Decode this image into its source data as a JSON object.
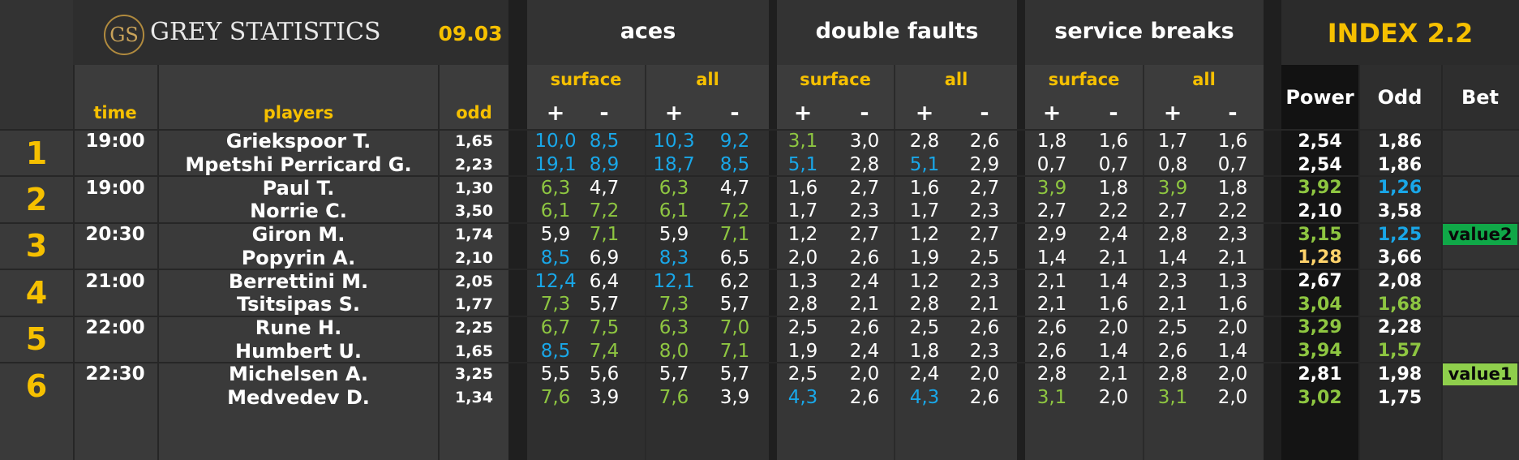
{
  "header": {
    "logo_mark": "GS",
    "logo_text": "GREY STATISTICS",
    "date": "09.03",
    "index_title": "INDEX 2.2",
    "groups": [
      "aces",
      "double faults",
      "service breaks"
    ],
    "subgroups": [
      "surface",
      "all"
    ],
    "plus": "+",
    "minus": "-",
    "col_time": "time",
    "col_players": "players",
    "col_odd": "odd",
    "col_power": "Power",
    "col_odd2": "Odd",
    "col_bet": "Bet"
  },
  "colors": {
    "white": "#ffffff",
    "green": "#8ec641",
    "blue": "#19a7e8",
    "gold": "#f6c000",
    "orange": "#ffd36b",
    "value_bg_dark": "#10a848",
    "value_bg_light": "#8fcf4c"
  },
  "matches": [
    {
      "no": "1",
      "time": "19:00",
      "players": [
        {
          "name": "Griekspoor T.",
          "odd": "1,65",
          "stats": [
            [
              "10,0",
              "blue"
            ],
            [
              "8,5",
              "blue"
            ],
            [
              "10,3",
              "blue"
            ],
            [
              "9,2",
              "blue"
            ],
            [
              "3,1",
              "green"
            ],
            [
              "3,0",
              "white"
            ],
            [
              "2,8",
              "white"
            ],
            [
              "2,6",
              "white"
            ],
            [
              "1,8",
              "white"
            ],
            [
              "1,6",
              "white"
            ],
            [
              "1,7",
              "white"
            ],
            [
              "1,6",
              "white"
            ]
          ],
          "power": [
            "2,54",
            "white"
          ],
          "odd2": [
            "1,86",
            "white"
          ],
          "bet": ""
        },
        {
          "name": "Mpetshi Perricard G.",
          "odd": "2,23",
          "stats": [
            [
              "19,1",
              "blue"
            ],
            [
              "8,9",
              "blue"
            ],
            [
              "18,7",
              "blue"
            ],
            [
              "8,5",
              "blue"
            ],
            [
              "5,1",
              "blue"
            ],
            [
              "2,8",
              "white"
            ],
            [
              "5,1",
              "blue"
            ],
            [
              "2,9",
              "white"
            ],
            [
              "0,7",
              "white"
            ],
            [
              "0,7",
              "white"
            ],
            [
              "0,8",
              "white"
            ],
            [
              "0,7",
              "white"
            ]
          ],
          "power": [
            "2,54",
            "white"
          ],
          "odd2": [
            "1,86",
            "white"
          ],
          "bet": ""
        }
      ]
    },
    {
      "no": "2",
      "time": "19:00",
      "players": [
        {
          "name": "Paul T.",
          "odd": "1,30",
          "stats": [
            [
              "6,3",
              "green"
            ],
            [
              "4,7",
              "white"
            ],
            [
              "6,3",
              "green"
            ],
            [
              "4,7",
              "white"
            ],
            [
              "1,6",
              "white"
            ],
            [
              "2,7",
              "white"
            ],
            [
              "1,6",
              "white"
            ],
            [
              "2,7",
              "white"
            ],
            [
              "3,9",
              "green"
            ],
            [
              "1,8",
              "white"
            ],
            [
              "3,9",
              "green"
            ],
            [
              "1,8",
              "white"
            ]
          ],
          "power": [
            "3,92",
            "green"
          ],
          "odd2": [
            "1,26",
            "blue"
          ],
          "bet": ""
        },
        {
          "name": "Norrie C.",
          "odd": "3,50",
          "stats": [
            [
              "6,1",
              "green"
            ],
            [
              "7,2",
              "green"
            ],
            [
              "6,1",
              "green"
            ],
            [
              "7,2",
              "green"
            ],
            [
              "1,7",
              "white"
            ],
            [
              "2,3",
              "white"
            ],
            [
              "1,7",
              "white"
            ],
            [
              "2,3",
              "white"
            ],
            [
              "2,7",
              "white"
            ],
            [
              "2,2",
              "white"
            ],
            [
              "2,7",
              "white"
            ],
            [
              "2,2",
              "white"
            ]
          ],
          "power": [
            "2,10",
            "white"
          ],
          "odd2": [
            "3,58",
            "white"
          ],
          "bet": ""
        }
      ]
    },
    {
      "no": "3",
      "time": "20:30",
      "players": [
        {
          "name": "Giron M.",
          "odd": "1,74",
          "stats": [
            [
              "5,9",
              "white"
            ],
            [
              "7,1",
              "green"
            ],
            [
              "5,9",
              "white"
            ],
            [
              "7,1",
              "green"
            ],
            [
              "1,2",
              "white"
            ],
            [
              "2,7",
              "white"
            ],
            [
              "1,2",
              "white"
            ],
            [
              "2,7",
              "white"
            ],
            [
              "2,9",
              "white"
            ],
            [
              "2,4",
              "white"
            ],
            [
              "2,8",
              "white"
            ],
            [
              "2,3",
              "white"
            ]
          ],
          "power": [
            "3,15",
            "green"
          ],
          "odd2": [
            "1,25",
            "blue"
          ],
          "bet": "value2"
        },
        {
          "name": "Popyrin A.",
          "odd": "2,10",
          "stats": [
            [
              "8,5",
              "blue"
            ],
            [
              "6,9",
              "white"
            ],
            [
              "8,3",
              "blue"
            ],
            [
              "6,5",
              "white"
            ],
            [
              "2,0",
              "white"
            ],
            [
              "2,6",
              "white"
            ],
            [
              "1,9",
              "white"
            ],
            [
              "2,5",
              "white"
            ],
            [
              "1,4",
              "white"
            ],
            [
              "2,1",
              "white"
            ],
            [
              "1,4",
              "white"
            ],
            [
              "2,1",
              "white"
            ]
          ],
          "power": [
            "1,28",
            "orange"
          ],
          "odd2": [
            "3,66",
            "white"
          ],
          "bet": ""
        }
      ]
    },
    {
      "no": "4",
      "time": "21:00",
      "players": [
        {
          "name": "Berrettini M.",
          "odd": "2,05",
          "stats": [
            [
              "12,4",
              "blue"
            ],
            [
              "6,4",
              "white"
            ],
            [
              "12,1",
              "blue"
            ],
            [
              "6,2",
              "white"
            ],
            [
              "1,3",
              "white"
            ],
            [
              "2,4",
              "white"
            ],
            [
              "1,2",
              "white"
            ],
            [
              "2,3",
              "white"
            ],
            [
              "2,1",
              "white"
            ],
            [
              "1,4",
              "white"
            ],
            [
              "2,3",
              "white"
            ],
            [
              "1,3",
              "white"
            ]
          ],
          "power": [
            "2,67",
            "white"
          ],
          "odd2": [
            "2,08",
            "white"
          ],
          "bet": ""
        },
        {
          "name": "Tsitsipas S.",
          "odd": "1,77",
          "stats": [
            [
              "7,3",
              "green"
            ],
            [
              "5,7",
              "white"
            ],
            [
              "7,3",
              "green"
            ],
            [
              "5,7",
              "white"
            ],
            [
              "2,8",
              "white"
            ],
            [
              "2,1",
              "white"
            ],
            [
              "2,8",
              "white"
            ],
            [
              "2,1",
              "white"
            ],
            [
              "2,1",
              "white"
            ],
            [
              "1,6",
              "white"
            ],
            [
              "2,1",
              "white"
            ],
            [
              "1,6",
              "white"
            ]
          ],
          "power": [
            "3,04",
            "green"
          ],
          "odd2": [
            "1,68",
            "green"
          ],
          "bet": ""
        }
      ]
    },
    {
      "no": "5",
      "time": "22:00",
      "players": [
        {
          "name": "Rune H.",
          "odd": "2,25",
          "stats": [
            [
              "6,7",
              "green"
            ],
            [
              "7,5",
              "green"
            ],
            [
              "6,3",
              "green"
            ],
            [
              "7,0",
              "green"
            ],
            [
              "2,5",
              "white"
            ],
            [
              "2,6",
              "white"
            ],
            [
              "2,5",
              "white"
            ],
            [
              "2,6",
              "white"
            ],
            [
              "2,6",
              "white"
            ],
            [
              "2,0",
              "white"
            ],
            [
              "2,5",
              "white"
            ],
            [
              "2,0",
              "white"
            ]
          ],
          "power": [
            "3,29",
            "green"
          ],
          "odd2": [
            "2,28",
            "white"
          ],
          "bet": ""
        },
        {
          "name": "Humbert U.",
          "odd": "1,65",
          "stats": [
            [
              "8,5",
              "blue"
            ],
            [
              "7,4",
              "green"
            ],
            [
              "8,0",
              "green"
            ],
            [
              "7,1",
              "green"
            ],
            [
              "1,9",
              "white"
            ],
            [
              "2,4",
              "white"
            ],
            [
              "1,8",
              "white"
            ],
            [
              "2,3",
              "white"
            ],
            [
              "2,6",
              "white"
            ],
            [
              "1,4",
              "white"
            ],
            [
              "2,6",
              "white"
            ],
            [
              "1,4",
              "white"
            ]
          ],
          "power": [
            "3,94",
            "green"
          ],
          "odd2": [
            "1,57",
            "green"
          ],
          "bet": ""
        }
      ]
    },
    {
      "no": "6",
      "time": "22:30",
      "players": [
        {
          "name": "Michelsen A.",
          "odd": "3,25",
          "stats": [
            [
              "5,5",
              "white"
            ],
            [
              "5,6",
              "white"
            ],
            [
              "5,7",
              "white"
            ],
            [
              "5,7",
              "white"
            ],
            [
              "2,5",
              "white"
            ],
            [
              "2,0",
              "white"
            ],
            [
              "2,4",
              "white"
            ],
            [
              "2,0",
              "white"
            ],
            [
              "2,8",
              "white"
            ],
            [
              "2,1",
              "white"
            ],
            [
              "2,8",
              "white"
            ],
            [
              "2,0",
              "white"
            ]
          ],
          "power": [
            "2,81",
            "white"
          ],
          "odd2": [
            "1,98",
            "white"
          ],
          "bet": "value1"
        },
        {
          "name": "Medvedev D.",
          "odd": "1,34",
          "stats": [
            [
              "7,6",
              "green"
            ],
            [
              "3,9",
              "white"
            ],
            [
              "7,6",
              "green"
            ],
            [
              "3,9",
              "white"
            ],
            [
              "4,3",
              "blue"
            ],
            [
              "2,6",
              "white"
            ],
            [
              "4,3",
              "blue"
            ],
            [
              "2,6",
              "white"
            ],
            [
              "3,1",
              "green"
            ],
            [
              "2,0",
              "white"
            ],
            [
              "3,1",
              "green"
            ],
            [
              "2,0",
              "white"
            ]
          ],
          "power": [
            "3,02",
            "green"
          ],
          "odd2": [
            "1,75",
            "white"
          ],
          "bet": ""
        }
      ]
    }
  ]
}
